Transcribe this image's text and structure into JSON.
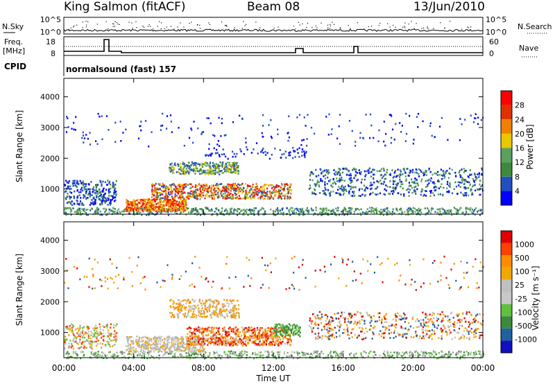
{
  "header": {
    "station": "King Salmon (fitACF)",
    "beam": "Beam 08",
    "date": "13/Jun/2010"
  },
  "noise_panel": {
    "left_label": "N.Sky",
    "right_label": "N.Search",
    "left_ticks": [
      "10^5",
      "10^0"
    ],
    "right_ticks": [
      "10^5",
      "10^0"
    ]
  },
  "freq_panel": {
    "left_label_1": "Freq.",
    "left_label_2": "[MHz]",
    "right_label": "Nave",
    "left_ticks": [
      "18",
      "8"
    ],
    "right_ticks": [
      "60",
      "0"
    ]
  },
  "cpid": {
    "label": "CPID",
    "value": "normalsound (fast) 157"
  },
  "colors": {
    "power": [
      "#0000ff",
      "#2050c0",
      "#3d8a3d",
      "#5aa060",
      "#e8c800",
      "#f08000",
      "#e03000",
      "#ff0000"
    ],
    "velocity": [
      "#e00000",
      "#ff4000",
      "#ff8c00",
      "#f0a800",
      "#c0c0c0",
      "#c8c8c8",
      "#60c040",
      "#3d8a3d",
      "#2060a0",
      "#1010c0"
    ]
  },
  "chart_data": [
    {
      "type": "heatmap",
      "title": "",
      "xlabel": "",
      "ylabel": "Slant Range [km]",
      "xlim": [
        "00:00",
        "24:00"
      ],
      "ylim": [
        180,
        4600
      ],
      "yticks": [
        "1000",
        "2000",
        "3000",
        "4000"
      ],
      "xticks": [
        "00:00",
        "04:00",
        "08:00",
        "12:00",
        "16:00",
        "20:00",
        "00:00"
      ],
      "colorbar_label": "Power [dB]",
      "colorbar_ticks": [
        "4",
        "8",
        "12",
        "16",
        "20",
        "24",
        "28"
      ],
      "colorbar_range": [
        0,
        30
      ]
    },
    {
      "type": "heatmap",
      "title": "",
      "xlabel": "Time UT",
      "ylabel": "Slant Range [km]",
      "xlim": [
        "00:00",
        "24:00"
      ],
      "ylim": [
        180,
        4600
      ],
      "yticks": [
        "1000",
        "2000",
        "3000",
        "4000"
      ],
      "xticks": [
        "00:00",
        "04:00",
        "08:00",
        "12:00",
        "16:00",
        "20:00",
        "00:00"
      ],
      "colorbar_label": "Velocity [m s⁻¹]",
      "colorbar_ticks": [
        "1000",
        "500",
        "100",
        "25",
        "-25",
        "-100",
        "-500",
        "-1000"
      ]
    }
  ]
}
